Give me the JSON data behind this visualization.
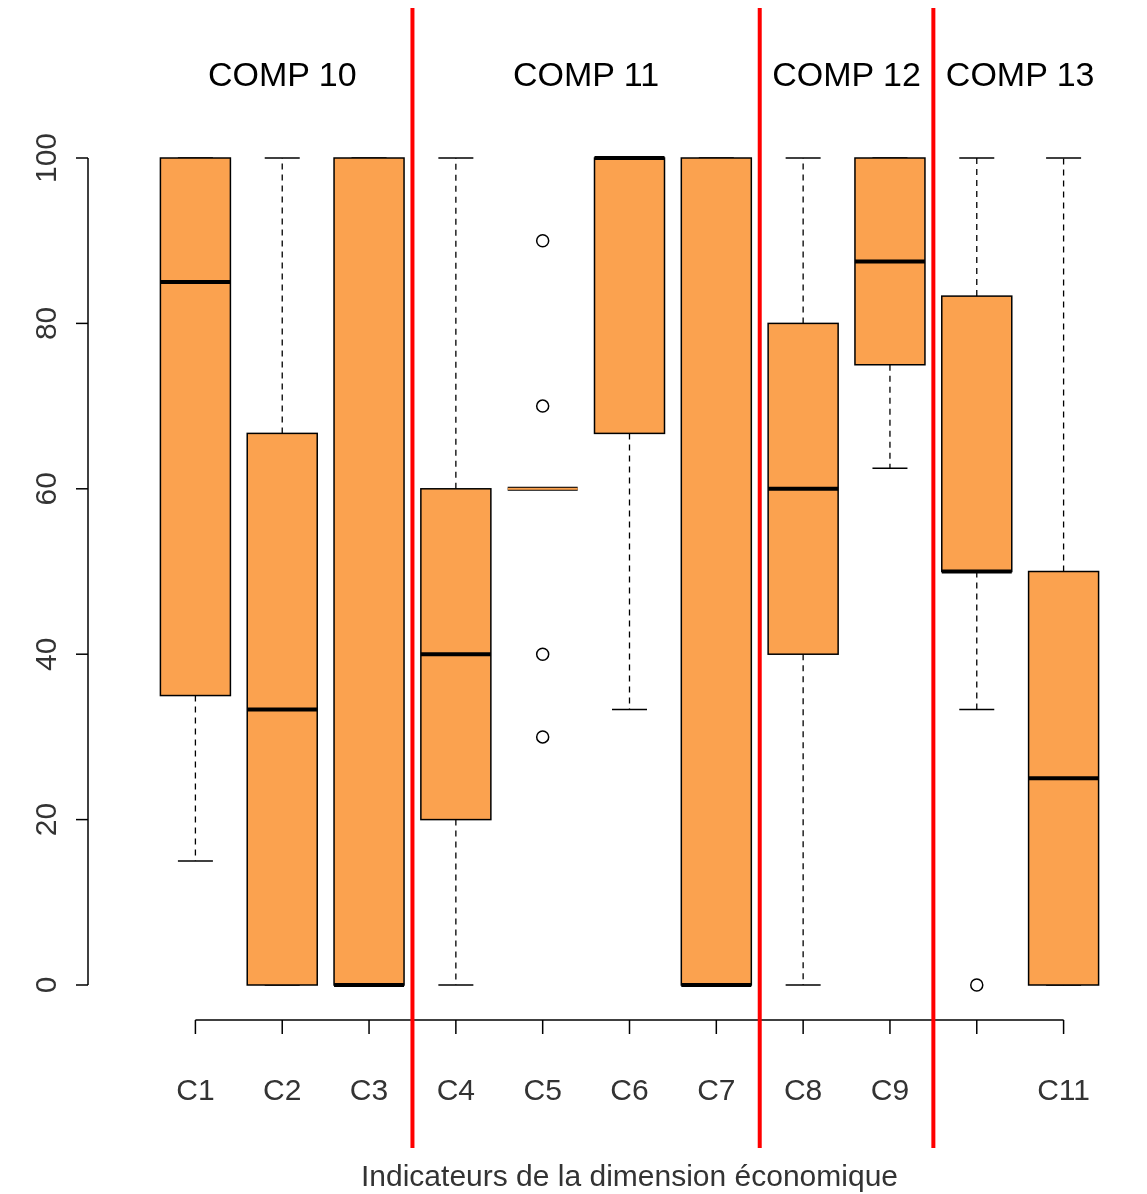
{
  "chart_data": {
    "type": "box",
    "xlabel": "Indicateurs de la dimension économique",
    "categories": [
      "C1",
      "C2",
      "C3",
      "C4",
      "C5",
      "C6",
      "C7",
      "C8",
      "C9",
      null,
      "C11"
    ],
    "color": "#fba24f",
    "ylim": [
      0,
      100
    ],
    "yticks": [
      0,
      20,
      40,
      60,
      80,
      100
    ],
    "grid": false,
    "boxes": [
      {
        "low": 15,
        "q1": 35,
        "median": 85,
        "q3": 100,
        "high": 100
      },
      {
        "low": 0,
        "q1": 0,
        "median": 33.3,
        "q3": 66.7,
        "high": 100
      },
      {
        "low": 0,
        "q1": 0,
        "median": 0,
        "q3": 100,
        "high": 100
      },
      {
        "low": 0,
        "q1": 20,
        "median": 40,
        "q3": 60,
        "high": 100
      },
      {
        "low": 60,
        "q1": 60,
        "median": 60,
        "q3": 60,
        "high": 60,
        "outliers": [
          90,
          70,
          40,
          30
        ]
      },
      {
        "low": 33.3,
        "q1": 66.7,
        "median": 100,
        "q3": 100,
        "high": 100
      },
      {
        "low": 0,
        "q1": 0,
        "median": 0,
        "q3": 100,
        "high": 100
      },
      {
        "low": 0,
        "q1": 40,
        "median": 60,
        "q3": 80,
        "high": 100
      },
      {
        "low": 62.5,
        "q1": 75,
        "median": 87.5,
        "q3": 100,
        "high": 100
      },
      {
        "low": 33.3,
        "q1": 50,
        "median": 50,
        "q3": 83.3,
        "high": 100,
        "outliers": [
          0
        ]
      },
      {
        "low": 0,
        "q1": 0,
        "median": 25,
        "q3": 50,
        "high": 100
      }
    ],
    "annotations": [
      "COMP 10",
      "COMP 11",
      "COMP 12",
      "COMP 13"
    ]
  }
}
